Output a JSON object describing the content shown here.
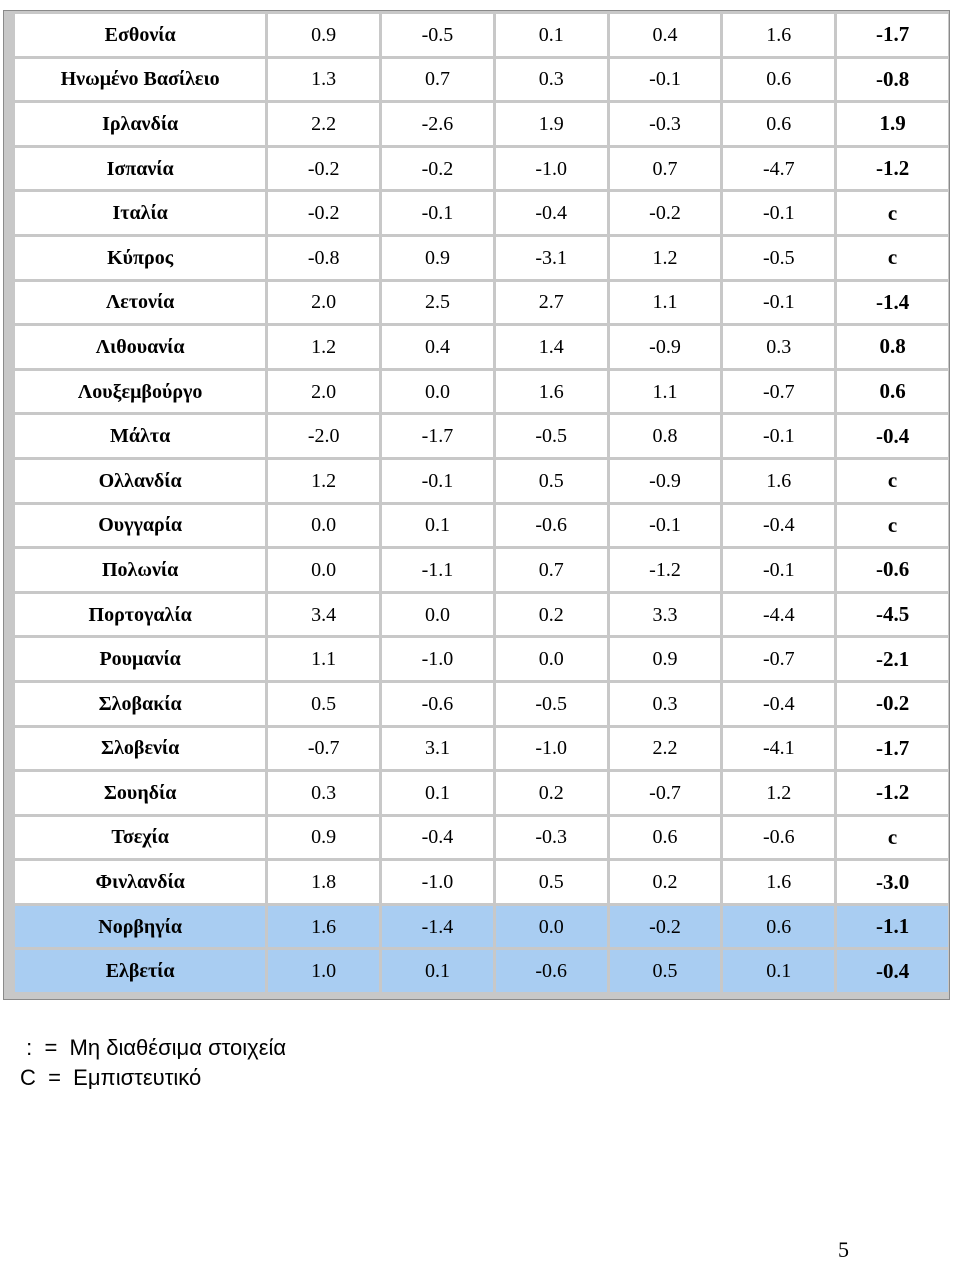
{
  "rows": [
    {
      "country": "Εσθονία",
      "v1": "0.9",
      "v2": "-0.5",
      "v3": "0.1",
      "v4": "0.4",
      "v5": "1.6",
      "v6": "-1.7"
    },
    {
      "country": "Ηνωμένο Βασίλειο",
      "v1": "1.3",
      "v2": "0.7",
      "v3": "0.3",
      "v4": "-0.1",
      "v5": "0.6",
      "v6": "-0.8"
    },
    {
      "country": "Ιρλανδία",
      "v1": "2.2",
      "v2": "-2.6",
      "v3": "1.9",
      "v4": "-0.3",
      "v5": "0.6",
      "v6": "1.9"
    },
    {
      "country": "Ισπανία",
      "v1": "-0.2",
      "v2": "-0.2",
      "v3": "-1.0",
      "v4": "0.7",
      "v5": "-4.7",
      "v6": "-1.2"
    },
    {
      "country": "Ιταλία",
      "v1": "-0.2",
      "v2": "-0.1",
      "v3": "-0.4",
      "v4": "-0.2",
      "v5": "-0.1",
      "v6": "c"
    },
    {
      "country": "Κύπρος",
      "v1": "-0.8",
      "v2": "0.9",
      "v3": "-3.1",
      "v4": "1.2",
      "v5": "-0.5",
      "v6": "c"
    },
    {
      "country": "Λετονία",
      "v1": "2.0",
      "v2": "2.5",
      "v3": "2.7",
      "v4": "1.1",
      "v5": "-0.1",
      "v6": "-1.4"
    },
    {
      "country": "Λιθουανία",
      "v1": "1.2",
      "v2": "0.4",
      "v3": "1.4",
      "v4": "-0.9",
      "v5": "0.3",
      "v6": "0.8"
    },
    {
      "country": "Λουξεμβούργο",
      "v1": "2.0",
      "v2": "0.0",
      "v3": "1.6",
      "v4": "1.1",
      "v5": "-0.7",
      "v6": "0.6"
    },
    {
      "country": "Μάλτα",
      "v1": "-2.0",
      "v2": "-1.7",
      "v3": "-0.5",
      "v4": "0.8",
      "v5": "-0.1",
      "v6": "-0.4"
    },
    {
      "country": "Ολλανδία",
      "v1": "1.2",
      "v2": "-0.1",
      "v3": "0.5",
      "v4": "-0.9",
      "v5": "1.6",
      "v6": "c"
    },
    {
      "country": "Ουγγαρία",
      "v1": "0.0",
      "v2": "0.1",
      "v3": "-0.6",
      "v4": "-0.1",
      "v5": "-0.4",
      "v6": "c"
    },
    {
      "country": "Πολωνία",
      "v1": "0.0",
      "v2": "-1.1",
      "v3": "0.7",
      "v4": "-1.2",
      "v5": "-0.1",
      "v6": "-0.6"
    },
    {
      "country": "Πορτογαλία",
      "v1": "3.4",
      "v2": "0.0",
      "v3": "0.2",
      "v4": "3.3",
      "v5": "-4.4",
      "v6": "-4.5"
    },
    {
      "country": "Ρουμανία",
      "v1": "1.1",
      "v2": "-1.0",
      "v3": "0.0",
      "v4": "0.9",
      "v5": "-0.7",
      "v6": "-2.1"
    },
    {
      "country": "Σλοβακία",
      "v1": "0.5",
      "v2": "-0.6",
      "v3": "-0.5",
      "v4": "0.3",
      "v5": "-0.4",
      "v6": "-0.2"
    },
    {
      "country": "Σλοβενία",
      "v1": "-0.7",
      "v2": "3.1",
      "v3": "-1.0",
      "v4": "2.2",
      "v5": "-4.1",
      "v6": "-1.7"
    },
    {
      "country": "Σουηδία",
      "v1": "0.3",
      "v2": "0.1",
      "v3": "0.2",
      "v4": "-0.7",
      "v5": "1.2",
      "v6": "-1.2"
    },
    {
      "country": "Τσεχία",
      "v1": "0.9",
      "v2": "-0.4",
      "v3": "-0.3",
      "v4": "0.6",
      "v5": "-0.6",
      "v6": "c"
    },
    {
      "country": "Φινλανδία",
      "v1": "1.8",
      "v2": "-1.0",
      "v3": "0.5",
      "v4": "0.2",
      "v5": "1.6",
      "v6": "-3.0"
    },
    {
      "country": "Νορβηγία",
      "v1": "1.6",
      "v2": "-1.4",
      "v3": "0.0",
      "v4": "-0.2",
      "v5": "0.6",
      "v6": "-1.1"
    },
    {
      "country": "Ελβετία",
      "v1": "1.0",
      "v2": "0.1",
      "v3": "-0.6",
      "v4": "0.5",
      "v5": "0.1",
      "v6": "-0.4"
    }
  ],
  "highlight_color": "#a9cdf2",
  "legend": {
    "line1": " :  =  Μη διαθέσιμα στοιχεία",
    "line2": "C  =  Εμπιστευτικό"
  },
  "page_number": "5"
}
